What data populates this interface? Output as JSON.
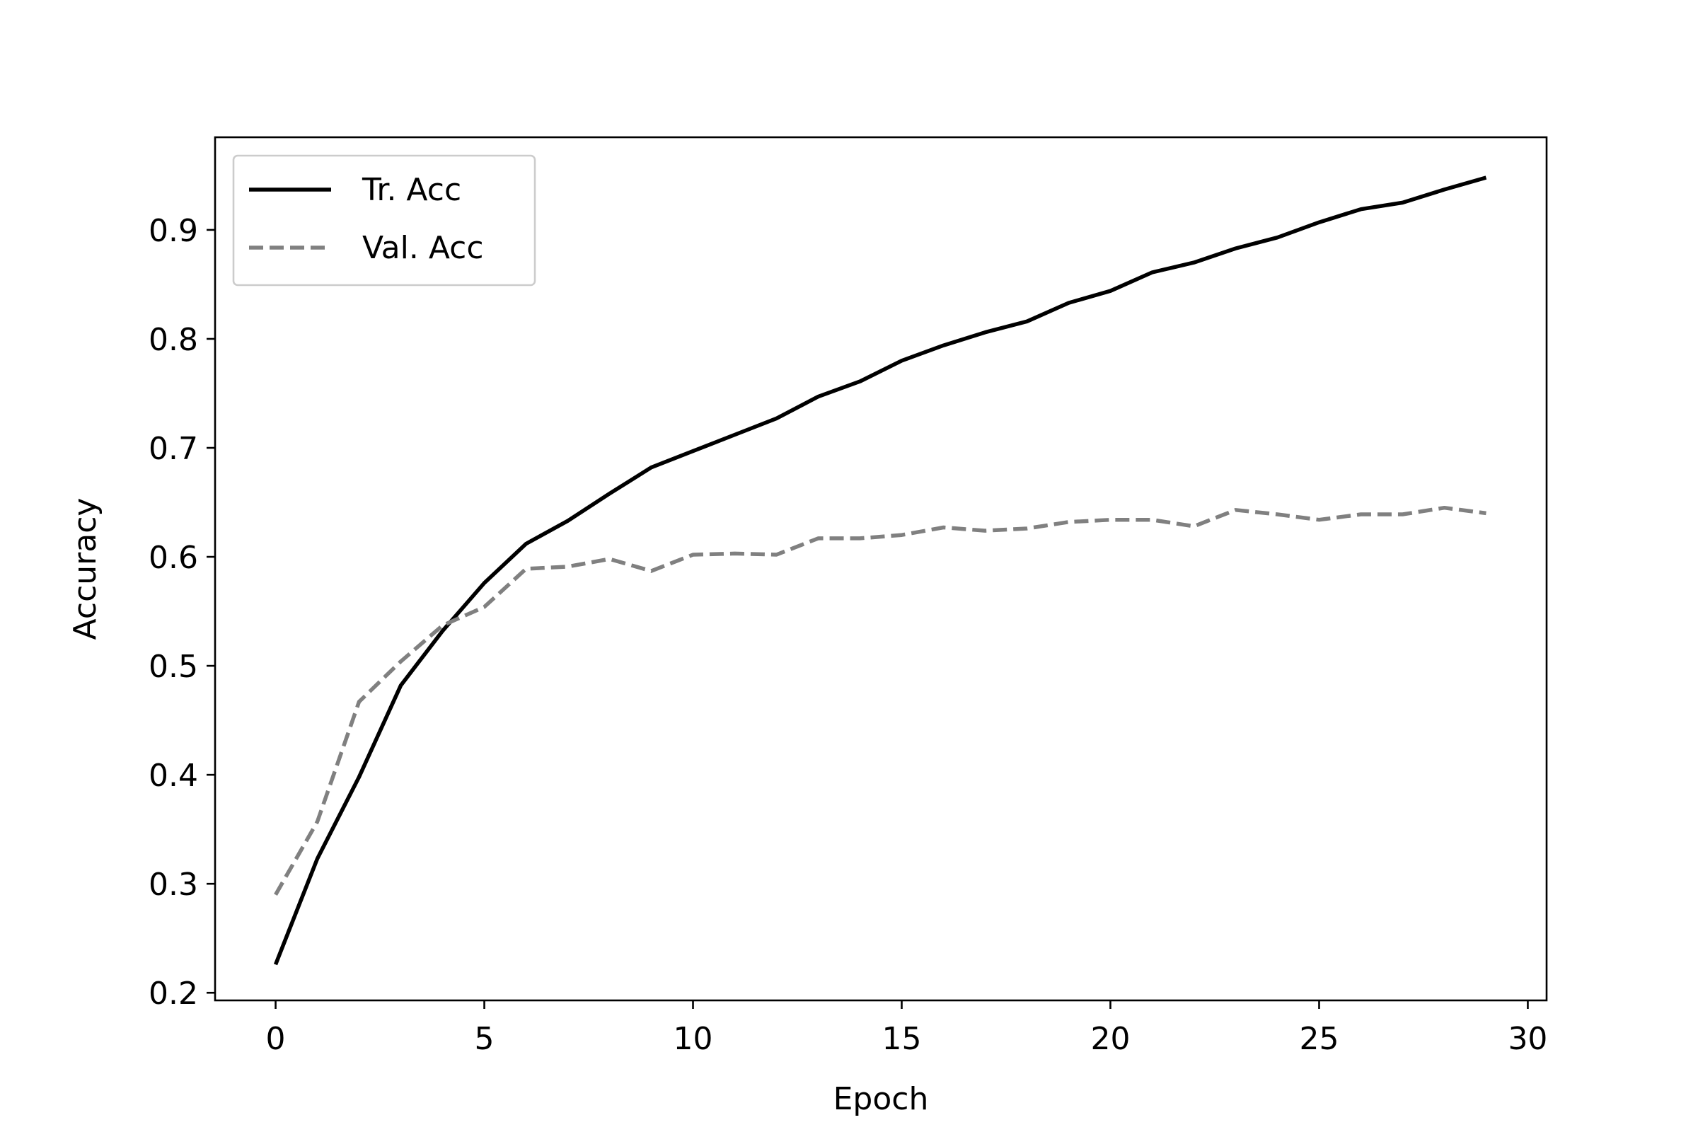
{
  "chart_data": {
    "type": "line",
    "title": "",
    "xlabel": "Epoch",
    "ylabel": "Accuracy",
    "xlim": [
      -1.45,
      30.45
    ],
    "ylim": [
      0.193,
      0.985
    ],
    "x_ticks": [
      0,
      5,
      10,
      15,
      20,
      25,
      30
    ],
    "y_ticks": [
      0.2,
      0.3,
      0.4,
      0.5,
      0.6,
      0.7,
      0.8,
      0.9
    ],
    "grid": false,
    "legend_position": "upper-left",
    "x": [
      0,
      1,
      2,
      3,
      4,
      5,
      6,
      7,
      8,
      9,
      10,
      11,
      12,
      13,
      14,
      15,
      16,
      17,
      18,
      19,
      20,
      21,
      22,
      23,
      24,
      25,
      26,
      27,
      28,
      29
    ],
    "series": [
      {
        "name": "Tr. Acc",
        "color": "#000000",
        "style": "solid",
        "values": [
          0.226,
          0.323,
          0.398,
          0.482,
          0.532,
          0.576,
          0.612,
          0.633,
          0.658,
          0.682,
          0.697,
          0.712,
          0.727,
          0.747,
          0.761,
          0.78,
          0.794,
          0.806,
          0.816,
          0.833,
          0.844,
          0.861,
          0.87,
          0.883,
          0.893,
          0.907,
          0.919,
          0.925,
          0.937,
          0.948
        ]
      },
      {
        "name": "Val. Acc",
        "color": "#808080",
        "style": "dashed",
        "values": [
          0.29,
          0.357,
          0.467,
          0.504,
          0.537,
          0.554,
          0.589,
          0.591,
          0.598,
          0.587,
          0.602,
          0.603,
          0.602,
          0.617,
          0.617,
          0.62,
          0.627,
          0.624,
          0.626,
          0.632,
          0.634,
          0.634,
          0.628,
          0.643,
          0.639,
          0.634,
          0.639,
          0.639,
          0.645,
          0.64
        ]
      }
    ]
  }
}
